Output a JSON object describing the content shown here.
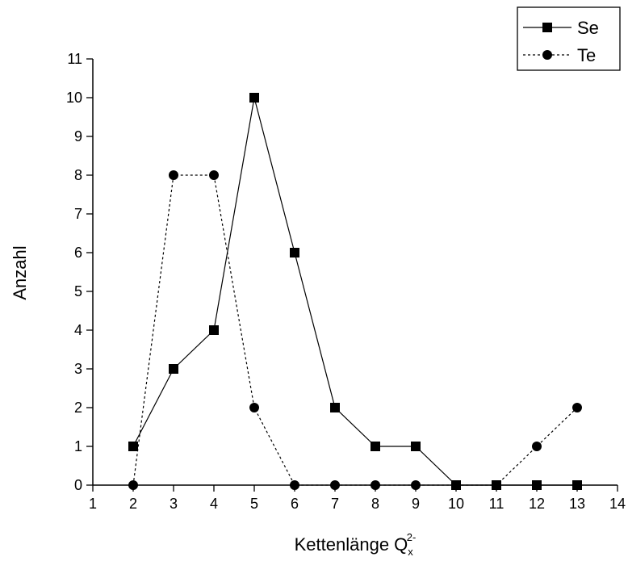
{
  "chart_data": {
    "type": "line",
    "xlabel": "Kettenlänge Q",
    "xlabel_sub": "x",
    "xlabel_sup": "2-",
    "ylabel": "Anzahl",
    "xlim": [
      1,
      14
    ],
    "ylim": [
      0,
      11
    ],
    "x_ticks": [
      "1",
      "2",
      "3",
      "4",
      "5",
      "6",
      "7",
      "8",
      "9",
      "10",
      "11",
      "12",
      "13",
      "14"
    ],
    "y_ticks": [
      "0",
      "1",
      "2",
      "3",
      "4",
      "5",
      "6",
      "7",
      "8",
      "9",
      "10",
      "11"
    ],
    "grid": false,
    "legend_position": "top-right",
    "series": [
      {
        "name": "Se",
        "marker": "square",
        "line_style": "solid",
        "color": "#000000",
        "x": [
          2,
          3,
          4,
          5,
          6,
          7,
          8,
          9,
          10,
          11,
          12,
          13
        ],
        "y": [
          1,
          3,
          4,
          10,
          6,
          2,
          1,
          1,
          0,
          0,
          0,
          0
        ]
      },
      {
        "name": "Te",
        "marker": "circle",
        "line_style": "dashed",
        "color": "#000000",
        "x": [
          2,
          3,
          4,
          5,
          6,
          7,
          8,
          9,
          10,
          11,
          12,
          13
        ],
        "y": [
          0,
          8,
          8,
          2,
          0,
          0,
          0,
          0,
          0,
          0,
          1,
          2
        ]
      }
    ]
  }
}
